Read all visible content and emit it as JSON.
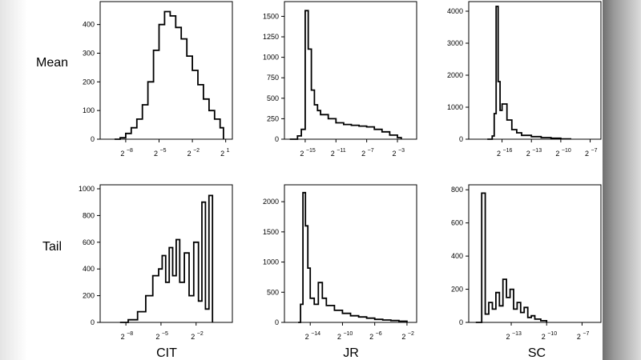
{
  "figure": {
    "row_labels": [
      "Mean",
      "Tail"
    ],
    "col_labels": [
      "CIT",
      "JR",
      "SC"
    ]
  },
  "chart_data": [
    {
      "type": "histogram",
      "row": "Mean",
      "column": "CIT",
      "x_scale": "log2",
      "x_ticks": [
        {
          "base": "2",
          "exp": "−8",
          "log2": -8
        },
        {
          "base": "2",
          "exp": "−5",
          "log2": -5
        },
        {
          "base": "2",
          "exp": "−2",
          "log2": -2
        },
        {
          "base": "2",
          "exp": "1",
          "log2": 1
        }
      ],
      "y_ticks": [
        0,
        100,
        200,
        300,
        400
      ],
      "xlim_log2": [
        -10.3,
        1.6
      ],
      "ylim": [
        0,
        480
      ],
      "x_log2": [
        -9,
        -8.5,
        -8,
        -7.5,
        -7,
        -6.5,
        -6,
        -5.5,
        -5,
        -4.5,
        -4,
        -3.5,
        -3,
        -2.5,
        -2,
        -1.5,
        -1,
        -0.5,
        0,
        0.5,
        0.8
      ],
      "values": [
        0,
        5,
        20,
        40,
        70,
        120,
        200,
        310,
        400,
        445,
        430,
        390,
        350,
        290,
        240,
        190,
        140,
        100,
        70,
        40,
        0
      ]
    },
    {
      "type": "histogram",
      "row": "Mean",
      "column": "JR",
      "x_scale": "log2",
      "x_ticks": [
        {
          "base": "2",
          "exp": "−15",
          "log2": -15
        },
        {
          "base": "2",
          "exp": "−11",
          "log2": -11
        },
        {
          "base": "2",
          "exp": "−7",
          "log2": -7
        },
        {
          "base": "2",
          "exp": "−3",
          "log2": -3
        }
      ],
      "y_ticks": [
        0,
        250,
        500,
        750,
        1000,
        1250,
        1500
      ],
      "xlim_log2": [
        -17.7,
        -0.5
      ],
      "ylim": [
        0,
        1680
      ],
      "x_log2": [
        -17,
        -16,
        -15.5,
        -15,
        -14.6,
        -14.2,
        -13.8,
        -13.4,
        -13,
        -12,
        -11,
        -10,
        -9,
        -8,
        -7,
        -6,
        -5,
        -4,
        -3,
        -2.5
      ],
      "values": [
        0,
        40,
        120,
        1570,
        1100,
        600,
        420,
        350,
        300,
        250,
        200,
        180,
        170,
        160,
        150,
        120,
        90,
        50,
        20,
        0
      ]
    },
    {
      "type": "histogram",
      "row": "Mean",
      "column": "SC",
      "x_scale": "log2",
      "x_ticks": [
        {
          "base": "2",
          "exp": "−16",
          "log2": -16
        },
        {
          "base": "2",
          "exp": "−13",
          "log2": -13
        },
        {
          "base": "2",
          "exp": "−10",
          "log2": -10
        },
        {
          "base": "2",
          "exp": "−7",
          "log2": -7
        }
      ],
      "y_ticks": [
        0,
        1000,
        2000,
        3000,
        4000
      ],
      "xlim_log2": [
        -19.4,
        -5.9
      ],
      "ylim": [
        0,
        4300
      ],
      "x_log2": [
        -17.5,
        -17,
        -16.8,
        -16.6,
        -16.4,
        -16.2,
        -16,
        -15.5,
        -15,
        -14.5,
        -14,
        -13,
        -12,
        -11,
        -10,
        -9
      ],
      "values": [
        0,
        100,
        800,
        4150,
        1800,
        900,
        1100,
        600,
        300,
        200,
        120,
        80,
        50,
        30,
        10,
        0
      ]
    },
    {
      "type": "histogram",
      "row": "Tail",
      "column": "CIT",
      "x_scale": "log2",
      "x_ticks": [
        {
          "base": "2",
          "exp": "−8",
          "log2": -8
        },
        {
          "base": "2",
          "exp": "−5",
          "log2": -5
        },
        {
          "base": "2",
          "exp": "−2",
          "log2": -2
        }
      ],
      "y_ticks": [
        0,
        200,
        400,
        600,
        800,
        1000
      ],
      "xlim_log2": [
        -10.2,
        1.1
      ],
      "ylim": [
        0,
        1030
      ],
      "x_log2": [
        -8.5,
        -7.8,
        -7,
        -6.3,
        -5.7,
        -5.2,
        -4.9,
        -4.6,
        -4.3,
        -4,
        -3.7,
        -3.4,
        -3,
        -2.6,
        -2.2,
        -1.8,
        -1.5,
        -1.2,
        -0.9,
        -0.6
      ],
      "values": [
        0,
        20,
        80,
        200,
        350,
        400,
        500,
        300,
        560,
        350,
        620,
        300,
        520,
        200,
        600,
        160,
        900,
        100,
        950,
        0
      ]
    },
    {
      "type": "histogram",
      "row": "Tail",
      "column": "JR",
      "x_scale": "log2",
      "x_ticks": [
        {
          "base": "2",
          "exp": "−14",
          "log2": -14
        },
        {
          "base": "2",
          "exp": "−10",
          "log2": -10
        },
        {
          "base": "2",
          "exp": "−6",
          "log2": -6
        },
        {
          "base": "2",
          "exp": "−2",
          "log2": -2
        }
      ],
      "y_ticks": [
        0,
        500,
        1000,
        1500,
        2000
      ],
      "xlim_log2": [
        -17.2,
        -0.8
      ],
      "ylim": [
        0,
        2280
      ],
      "x_log2": [
        -15.5,
        -15.2,
        -14.9,
        -14.6,
        -14.3,
        -14,
        -13.5,
        -13,
        -12.5,
        -12,
        -11,
        -10,
        -9,
        -8,
        -7,
        -6,
        -5,
        -4,
        -3,
        -2
      ],
      "values": [
        0,
        300,
        2150,
        1600,
        900,
        400,
        300,
        660,
        400,
        280,
        200,
        150,
        110,
        90,
        70,
        50,
        40,
        30,
        20,
        0
      ]
    },
    {
      "type": "histogram",
      "row": "Tail",
      "column": "SC",
      "x_scale": "log2",
      "x_ticks": [
        {
          "base": "2",
          "exp": "−13",
          "log2": -13
        },
        {
          "base": "2",
          "exp": "−10",
          "log2": -10
        },
        {
          "base": "2",
          "exp": "−7",
          "log2": -7
        }
      ],
      "y_ticks": [
        0,
        200,
        400,
        600,
        800
      ],
      "xlim_log2": [
        -16.6,
        -5.4
      ],
      "ylim": [
        0,
        830
      ],
      "x_log2": [
        -16,
        -15.5,
        -15.2,
        -14.9,
        -14.6,
        -14.3,
        -14,
        -13.7,
        -13.4,
        -13.1,
        -12.8,
        -12.5,
        -12.2,
        -11.9,
        -11.6,
        -11.3,
        -11,
        -10.5,
        -10
      ],
      "values": [
        0,
        780,
        50,
        120,
        80,
        180,
        100,
        260,
        150,
        200,
        80,
        120,
        60,
        90,
        30,
        40,
        20,
        10,
        0
      ]
    }
  ]
}
